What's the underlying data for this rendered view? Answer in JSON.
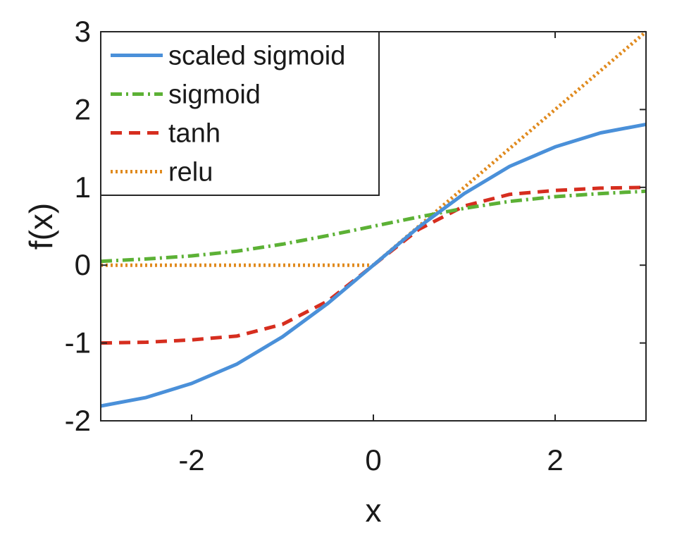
{
  "chart_data": {
    "type": "line",
    "title": "",
    "xlabel": "x",
    "ylabel": "f(x)",
    "xlim": [
      -3,
      3
    ],
    "ylim": [
      -2,
      3
    ],
    "xticks": [
      -2,
      0,
      2
    ],
    "xtick_labels": [
      "-2",
      "0",
      "2"
    ],
    "yticks": [
      -2,
      -1,
      0,
      1,
      2,
      3
    ],
    "ytick_labels": [
      "-2",
      "-1",
      "0",
      "1",
      "2",
      "3"
    ],
    "grid": false,
    "legend_position": "top-left",
    "x": [
      -3,
      -2.5,
      -2,
      -1.5,
      -1,
      -0.5,
      0,
      0.5,
      1,
      1.5,
      2,
      2.5,
      3
    ],
    "series": [
      {
        "name": "scaled sigmoid",
        "color": "#4a90d9",
        "dash": "solid",
        "values": [
          -1.81,
          -1.7,
          -1.52,
          -1.27,
          -0.92,
          -0.49,
          0.0,
          0.49,
          0.92,
          1.27,
          1.52,
          1.7,
          1.81
        ]
      },
      {
        "name": "sigmoid",
        "color": "#5cb135",
        "dash": "dashdot",
        "values": [
          0.05,
          0.08,
          0.12,
          0.18,
          0.27,
          0.38,
          0.5,
          0.62,
          0.73,
          0.82,
          0.88,
          0.92,
          0.95
        ]
      },
      {
        "name": "tanh",
        "color": "#d62e1f",
        "dash": "dashed",
        "values": [
          -1.0,
          -0.99,
          -0.96,
          -0.91,
          -0.76,
          -0.46,
          0.0,
          0.46,
          0.76,
          0.91,
          0.96,
          0.99,
          1.0
        ]
      },
      {
        "name": "relu",
        "color": "#e08a1e",
        "dash": "dotted",
        "values": [
          0,
          0,
          0,
          0,
          0,
          0,
          0,
          0.5,
          1,
          1.5,
          2,
          2.5,
          3
        ]
      }
    ]
  }
}
